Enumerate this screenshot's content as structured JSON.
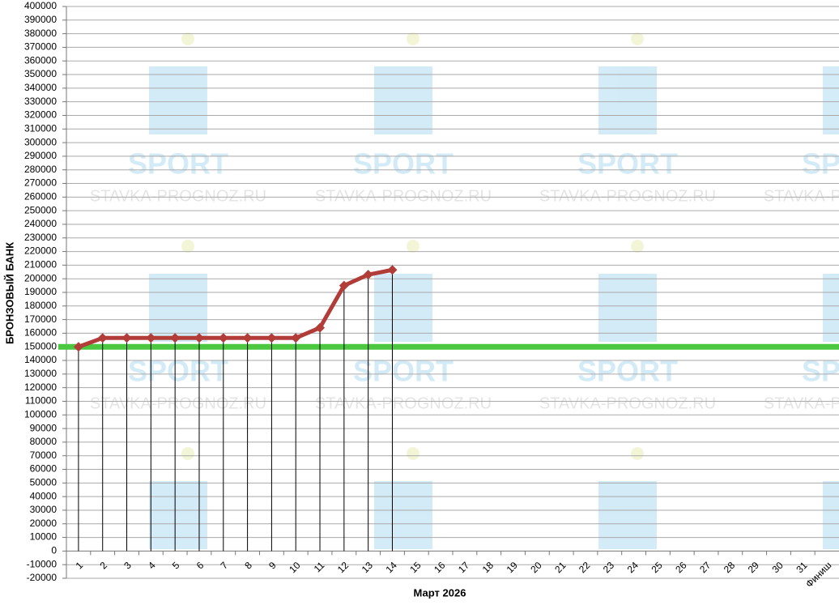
{
  "chart_data": {
    "type": "line",
    "y_label": "БРОНЗОВЫЙ БАНК",
    "x_label": "Март 2026",
    "categories": [
      "1",
      "2",
      "3",
      "4",
      "5",
      "6",
      "7",
      "8",
      "9",
      "10",
      "11",
      "12",
      "13",
      "14",
      "15",
      "16",
      "17",
      "18",
      "19",
      "20",
      "21",
      "22",
      "23",
      "24",
      "25",
      "26",
      "27",
      "28",
      "29",
      "30",
      "31",
      "Финиш"
    ],
    "series": [
      {
        "color": "#b23c38",
        "values": [
          150000,
          156500,
          156500,
          156500,
          156500,
          156500,
          156500,
          156500,
          156500,
          156500,
          164000,
          195000,
          203000,
          206500,
          null,
          null,
          null,
          null,
          null,
          null,
          null,
          null,
          null,
          null,
          null,
          null,
          null,
          null,
          null,
          null,
          null,
          null
        ]
      }
    ],
    "reference_line": {
      "value": 150000,
      "color": "#4cc840"
    },
    "ylim": [
      -20000,
      400000
    ],
    "yticks": [
      -20000,
      -10000,
      0,
      10000,
      20000,
      30000,
      40000,
      50000,
      60000,
      70000,
      80000,
      90000,
      100000,
      110000,
      120000,
      130000,
      140000,
      150000,
      160000,
      170000,
      180000,
      190000,
      200000,
      210000,
      220000,
      230000,
      240000,
      250000,
      260000,
      270000,
      280000,
      290000,
      300000,
      310000,
      320000,
      330000,
      340000,
      350000,
      360000,
      370000,
      380000,
      390000,
      400000
    ],
    "grid": true,
    "drop_lines": true,
    "watermark": {
      "logo": "SPORT",
      "site": "STAVKA-PROGNOZ.RU"
    }
  }
}
